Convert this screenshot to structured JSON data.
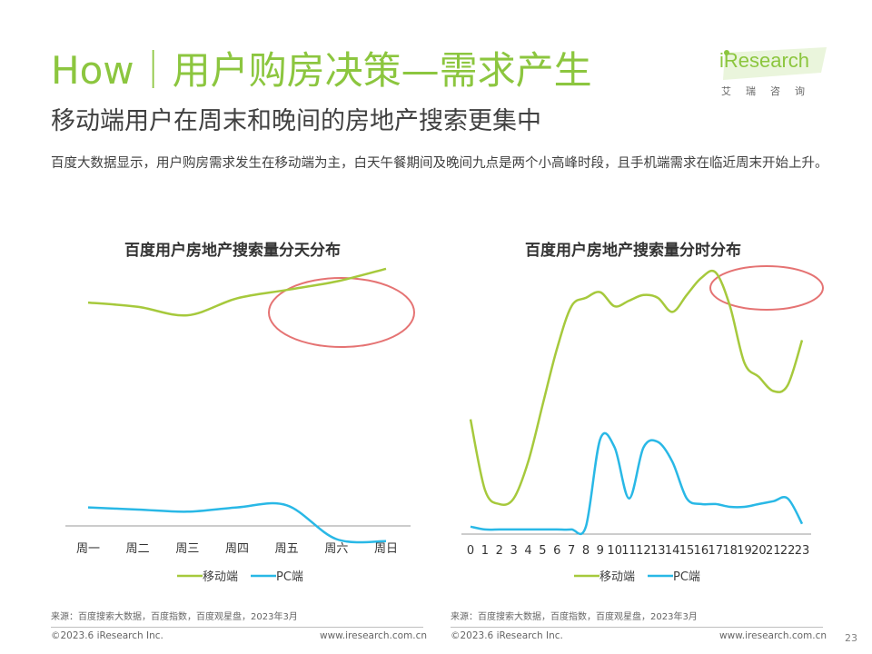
{
  "header": {
    "title": "How｜用户购房决策—需求产生",
    "subtitle": "移动端用户在周末和晚间的房地产搜索更集中",
    "description": "百度大数据显示，用户购房需求发生在移动端为主，白天午餐期间及晚间九点是两个小高峰时段，且手机端需求在临近周末开始上升。"
  },
  "logo": {
    "text": "iResearch",
    "cn": "艾瑞咨询"
  },
  "colors": {
    "mobile": "#a6c93c",
    "pc": "#29b8e6",
    "highlight": "#e57373",
    "title": "#8cc63f"
  },
  "chart_data": [
    {
      "type": "line",
      "title": "百度用户房地产搜索量分天分布",
      "categories": [
        "周一",
        "周二",
        "周三",
        "周四",
        "周五",
        "周六",
        "周日"
      ],
      "series": [
        {
          "name": "移动端",
          "values": [
            66,
            65,
            63,
            67,
            69,
            71,
            74
          ]
        },
        {
          "name": "PC端",
          "values": [
            17.5,
            17,
            16.5,
            17.5,
            18,
            10,
            9.5
          ]
        }
      ],
      "ylim": [
        0,
        100
      ],
      "grid": false,
      "legend": "bottom",
      "highlight": "周五-周日"
    },
    {
      "type": "line",
      "title": "百度用户房地产搜索量分时分布",
      "categories": [
        "0",
        "1",
        "2",
        "3",
        "4",
        "5",
        "6",
        "7",
        "8",
        "9",
        "10",
        "11",
        "12",
        "13",
        "14",
        "15",
        "16",
        "17",
        "18",
        "19",
        "20",
        "21",
        "22",
        "23"
      ],
      "series": [
        {
          "name": "移动端",
          "values": [
            40,
            15,
            10,
            12,
            25,
            45,
            65,
            80,
            83,
            85,
            80,
            82,
            84,
            83,
            78,
            84,
            90,
            92,
            80,
            60,
            55,
            50,
            52,
            68
          ]
        },
        {
          "name": "PC端",
          "values": [
            2,
            1,
            1,
            1,
            1,
            1,
            1,
            1,
            2,
            33,
            30,
            12,
            30,
            32,
            25,
            12,
            10,
            10,
            9,
            9,
            10,
            11,
            12,
            3
          ]
        }
      ],
      "ylim": [
        0,
        100
      ],
      "grid": false,
      "legend": "bottom",
      "highlight": "20-22"
    }
  ],
  "sources": {
    "left": "来源：百度搜索大数据，百度指数，百度观星盘，2023年3月",
    "right": "来源：百度搜索大数据，百度指数，百度观星盘，2023年3月"
  },
  "footer": {
    "copyright_left": "©2023.6 iResearch Inc.",
    "url_left": "www.iresearch.com.cn",
    "copyright_right": "©2023.6 iResearch Inc.",
    "url_right": "www.iresearch.com.cn",
    "page": "23"
  }
}
